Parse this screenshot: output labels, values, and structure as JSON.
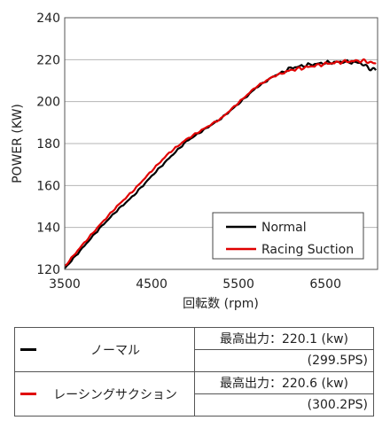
{
  "chart_data": {
    "type": "line",
    "title": "",
    "xlabel": "回転数 (rpm)",
    "ylabel": "POWER (KW)",
    "xlim": [
      3500,
      7100
    ],
    "ylim": [
      120,
      240
    ],
    "xticks": [
      "3500",
      "4500",
      "5500",
      "6500"
    ],
    "yticks": [
      "120",
      "140",
      "160",
      "180",
      "200",
      "220",
      "240"
    ],
    "grid": "horizontal",
    "legend_position": "bottom-right",
    "series": [
      {
        "name": "Normal",
        "color": "#000000",
        "x": [
          3500,
          3700,
          3900,
          4100,
          4300,
          4500,
          4700,
          4900,
          5100,
          5300,
          5500,
          5700,
          5900,
          6100,
          6300,
          6500,
          6700,
          6900,
          7000,
          7080
        ],
        "y": [
          120.5,
          130,
          139.5,
          148,
          155.5,
          164.5,
          173,
          181,
          186.5,
          192,
          199,
          206.5,
          212,
          216,
          217.5,
          218.5,
          219,
          218.5,
          216,
          215
        ]
      },
      {
        "name": "Racing Suction",
        "color": "#e00000",
        "x": [
          3500,
          3700,
          3900,
          4100,
          4300,
          4500,
          4700,
          4900,
          5100,
          5300,
          5500,
          5700,
          5900,
          6100,
          6300,
          6500,
          6700,
          6900,
          7000,
          7080
        ],
        "y": [
          121.5,
          131.5,
          141,
          150,
          158,
          167,
          175.5,
          182,
          187,
          192,
          199.5,
          207,
          212,
          215,
          216.5,
          218,
          219,
          219.5,
          219,
          218
        ]
      }
    ]
  },
  "table": {
    "rows": [
      {
        "name": "ノーマル",
        "color": "#000000",
        "power": "最高出力：220.1 (kw)",
        "ps": "(299.5PS)"
      },
      {
        "name": "レーシングサクション",
        "color": "#e00000",
        "power": "最高出力：220.6 (kw)",
        "ps": "(300.2PS)"
      }
    ]
  }
}
